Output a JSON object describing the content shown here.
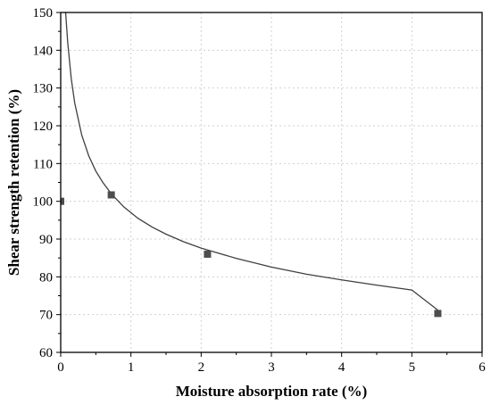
{
  "chart_data": {
    "type": "scatter",
    "xlabel": "Moisture absorption rate (%)",
    "ylabel": "Shear strength retention (%)",
    "xlim": [
      0,
      6
    ],
    "ylim": [
      60,
      150
    ],
    "x_ticks": [
      0,
      1,
      2,
      3,
      4,
      5,
      6
    ],
    "y_ticks": [
      60,
      70,
      80,
      90,
      100,
      110,
      120,
      130,
      140,
      150
    ],
    "grid": true,
    "grid_style": "dotted",
    "series": [
      {
        "kind": "points",
        "marker": "square",
        "color": "#4d4d4d",
        "points": [
          {
            "x": 0.0,
            "y": 100.0
          },
          {
            "x": 0.72,
            "y": 101.7
          },
          {
            "x": 2.09,
            "y": 86.0
          },
          {
            "x": 5.37,
            "y": 70.3
          }
        ]
      },
      {
        "kind": "fit_line",
        "color": "#404040",
        "points": [
          {
            "x": 0.07,
            "y": 150.0
          },
          {
            "x": 0.1,
            "y": 142.0
          },
          {
            "x": 0.15,
            "y": 132.5
          },
          {
            "x": 0.2,
            "y": 126.0
          },
          {
            "x": 0.3,
            "y": 117.5
          },
          {
            "x": 0.4,
            "y": 112.0
          },
          {
            "x": 0.5,
            "y": 108.0
          },
          {
            "x": 0.6,
            "y": 105.0
          },
          {
            "x": 0.72,
            "y": 102.0
          },
          {
            "x": 0.9,
            "y": 98.5
          },
          {
            "x": 1.1,
            "y": 95.5
          },
          {
            "x": 1.3,
            "y": 93.2
          },
          {
            "x": 1.5,
            "y": 91.3
          },
          {
            "x": 1.75,
            "y": 89.3
          },
          {
            "x": 2.0,
            "y": 87.6
          },
          {
            "x": 2.5,
            "y": 84.9
          },
          {
            "x": 3.0,
            "y": 82.6
          },
          {
            "x": 3.5,
            "y": 80.7
          },
          {
            "x": 4.0,
            "y": 79.2
          },
          {
            "x": 4.5,
            "y": 77.8
          },
          {
            "x": 5.0,
            "y": 76.5
          },
          {
            "x": 5.37,
            "y": 71.2
          }
        ]
      }
    ]
  }
}
